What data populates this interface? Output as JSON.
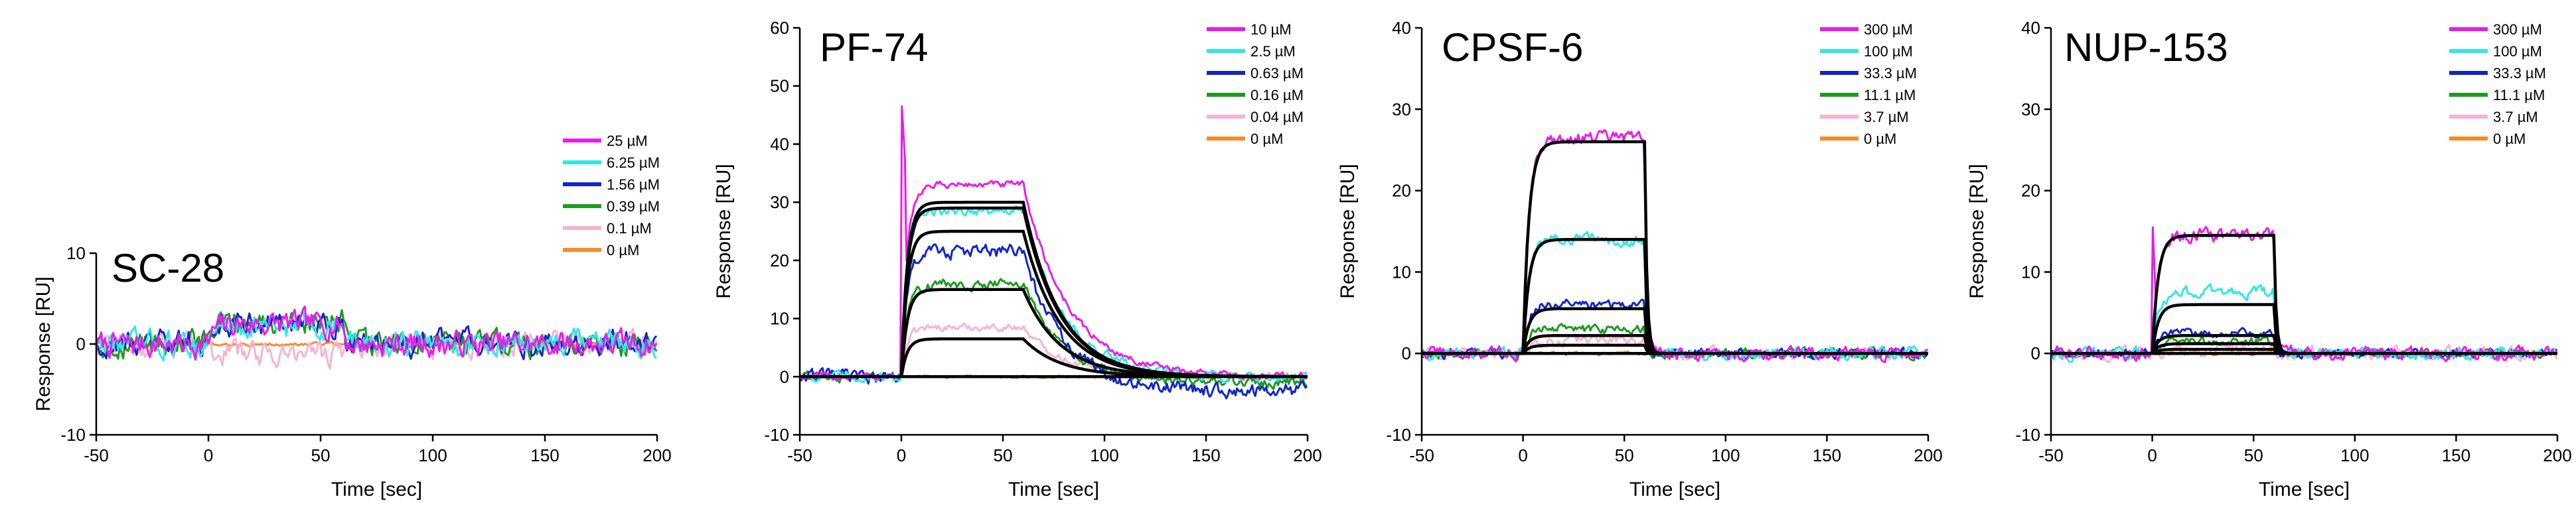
{
  "chart_data": [
    {
      "type": "line",
      "title": "SC-28",
      "xlabel": "Time [sec]",
      "ylabel": "Response [RU]",
      "xlim": [
        -50,
        200
      ],
      "ylim": [
        -10,
        10
      ],
      "xticks": [
        -50,
        0,
        50,
        100,
        150,
        200
      ],
      "yticks": [
        -10,
        0,
        10
      ],
      "xtick_labels": [
        "-50",
        "0",
        "50",
        "100",
        "150",
        "200"
      ],
      "ytick_labels": [
        "-10",
        "0",
        "10"
      ],
      "injection": [
        0,
        60
      ],
      "series": [
        {
          "name": "25 µM",
          "color": "#e81ee8",
          "plateau": 2.2,
          "noise": 1.4
        },
        {
          "name": "6.25 µM",
          "color": "#33e6e6",
          "plateau": 2.0,
          "noise": 1.4
        },
        {
          "name": "1.56 µM",
          "color": "#1426c8",
          "plateau": 2.2,
          "noise": 1.4
        },
        {
          "name": "0.39 µM",
          "color": "#1e9a1e",
          "plateau": 2.4,
          "noise": 1.4
        },
        {
          "name": "0.1 µM",
          "color": "#f5b4d4",
          "plateau": -1.0,
          "noise": 1.4
        },
        {
          "name": "0 µM",
          "color": "#f58c28",
          "plateau": 0,
          "noise": 0.2
        }
      ],
      "fits": []
    },
    {
      "type": "line",
      "title": "PF-74",
      "xlabel": "Time [sec]",
      "ylabel": "Response [RU]",
      "xlim": [
        -50,
        200
      ],
      "ylim": [
        -10,
        60
      ],
      "xticks": [
        -50,
        0,
        50,
        100,
        150,
        200
      ],
      "yticks": [
        -10,
        0,
        10,
        20,
        30,
        40,
        50,
        60
      ],
      "xtick_labels": [
        "-50",
        "0",
        "50",
        "100",
        "150",
        "200"
      ],
      "ytick_labels": [
        "-10",
        "0",
        "10",
        "20",
        "30",
        "40",
        "50",
        "60"
      ],
      "injection": [
        0,
        60
      ],
      "series": [
        {
          "name": "10 µM",
          "color": "#e81ee8",
          "plateau": 33,
          "noise": 0.6,
          "spike": 48,
          "koff": 0.045,
          "tail": 0
        },
        {
          "name": "2.5 µM",
          "color": "#33e6e6",
          "plateau": 28.5,
          "noise": 0.8,
          "koff": 0.05,
          "tail": 0
        },
        {
          "name": "0.63 µM",
          "color": "#1426c8",
          "plateau": 21.5,
          "noise": 1.2,
          "koff": 0.05,
          "tail": -2.5
        },
        {
          "name": "0.16 µM",
          "color": "#1e9a1e",
          "plateau": 16,
          "noise": 0.9,
          "koff": 0.05,
          "tail": -1
        },
        {
          "name": "0.04 µM",
          "color": "#f5b4d4",
          "plateau": 8.5,
          "noise": 0.6,
          "koff": 0.05,
          "tail": 0
        },
        {
          "name": "0 µM",
          "color": "#f58c28",
          "plateau": 0,
          "noise": 0.2,
          "koff": 0.05,
          "tail": 0
        }
      ],
      "fits": [
        30,
        29,
        25,
        15,
        6.5
      ]
    },
    {
      "type": "line",
      "title": "CPSF-6",
      "xlabel": "Time [sec]",
      "ylabel": "Response [RU]",
      "xlim": [
        -50,
        200
      ],
      "ylim": [
        -10,
        40
      ],
      "xticks": [
        -50,
        0,
        50,
        100,
        150,
        200
      ],
      "yticks": [
        -10,
        0,
        10,
        20,
        30,
        40
      ],
      "xtick_labels": [
        "-50",
        "0",
        "50",
        "100",
        "150",
        "200"
      ],
      "ytick_labels": [
        "-10",
        "0",
        "10",
        "20",
        "30",
        "40"
      ],
      "injection": [
        0,
        60
      ],
      "series": [
        {
          "name": "300 µM",
          "color": "#e81ee8",
          "plateau": 26.5,
          "noise": 0.8
        },
        {
          "name": "100 µM",
          "color": "#33e6e6",
          "plateau": 14,
          "noise": 0.7
        },
        {
          "name": "33.3 µM",
          "color": "#1426c8",
          "plateau": 6,
          "noise": 0.6
        },
        {
          "name": "11.1 µM",
          "color": "#1e9a1e",
          "plateau": 3,
          "noise": 0.6
        },
        {
          "name": "3.7 µM",
          "color": "#f5b4d4",
          "plateau": 1.5,
          "noise": 0.7
        },
        {
          "name": "0 µM",
          "color": "#f58c28",
          "plateau": 0,
          "noise": 0.2
        }
      ],
      "fits": [
        26,
        14,
        5.5,
        2.2,
        1
      ]
    },
    {
      "type": "line",
      "title": "NUP-153",
      "xlabel": "Time [sec]",
      "ylabel": "Response [RU]",
      "xlim": [
        -50,
        200
      ],
      "ylim": [
        -10,
        40
      ],
      "xticks": [
        -50,
        0,
        50,
        100,
        150,
        200
      ],
      "yticks": [
        -10,
        0,
        10,
        20,
        30,
        40
      ],
      "xtick_labels": [
        "-50",
        "0",
        "50",
        "100",
        "150",
        "200"
      ],
      "ytick_labels": [
        "-10",
        "0",
        "10",
        "20",
        "30",
        "40"
      ],
      "injection": [
        0,
        60
      ],
      "series": [
        {
          "name": "300 µM",
          "color": "#e81ee8",
          "plateau": 14.5,
          "noise": 0.8,
          "spike": 17
        },
        {
          "name": "100 µM",
          "color": "#33e6e6",
          "plateau": 7.5,
          "noise": 0.7
        },
        {
          "name": "33.3 µM",
          "color": "#1426c8",
          "plateau": 2.5,
          "noise": 0.5
        },
        {
          "name": "11.1 µM",
          "color": "#1e9a1e",
          "plateau": 1.5,
          "noise": 0.5
        },
        {
          "name": "3.7 µM",
          "color": "#f5b4d4",
          "plateau": 0.5,
          "noise": 0.8
        },
        {
          "name": "0 µM",
          "color": "#f58c28",
          "plateau": 0,
          "noise": 0.2
        }
      ],
      "fits": [
        14.5,
        6,
        2.2,
        1.2,
        0.5
      ]
    }
  ]
}
